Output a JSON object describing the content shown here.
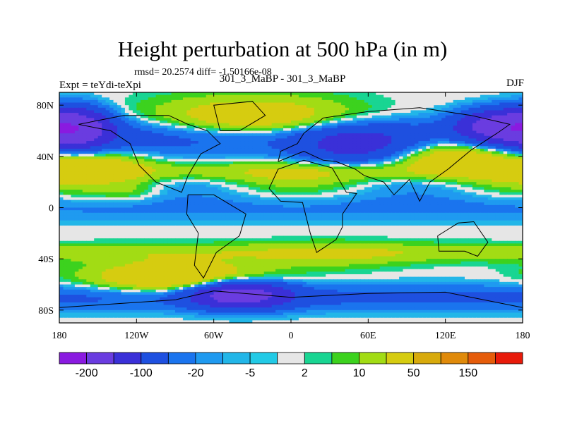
{
  "colors": {
    "levels": [
      "#8a1ae0",
      "#6a3ce0",
      "#3a30d8",
      "#1e50e0",
      "#1a74ee",
      "#1f9af0",
      "#22b6e8",
      "#22cae6",
      "#e6e6e6",
      "#19d592",
      "#3cd21e",
      "#a2dc14",
      "#d6cc10",
      "#d8aa0c",
      "#e08a0a",
      "#e55c0a",
      "#e81a0a"
    ],
    "coast": "#000000"
  },
  "chart_data": {
    "type": "heatmap",
    "title": "Height perturbation at 500 hPa (in m)",
    "rmsd_text": "rmsd= 20.2574 diff= -1.50166e-08",
    "subtitle": "301_3_MaBP - 301_3_MaBP",
    "left_label": "Expt = teYdi-teXpi",
    "right_label": "DJF",
    "xlim": [
      -180,
      180
    ],
    "ylim": [
      -90,
      90
    ],
    "x_ticks": [
      {
        "value": -180,
        "label": "180"
      },
      {
        "value": -120,
        "label": "120W"
      },
      {
        "value": -60,
        "label": "60W"
      },
      {
        "value": 0,
        "label": "0"
      },
      {
        "value": 60,
        "label": "60E"
      },
      {
        "value": 120,
        "label": "120E"
      },
      {
        "value": 180,
        "label": "180"
      }
    ],
    "y_ticks": [
      {
        "value": 80,
        "label": "80N"
      },
      {
        "value": 40,
        "label": "40N"
      },
      {
        "value": 0,
        "label": "0"
      },
      {
        "value": -40,
        "label": "40S"
      },
      {
        "value": -80,
        "label": "80S"
      }
    ],
    "colorbar_labels": [
      "-200",
      "-100",
      "-20",
      "-5",
      "2",
      "10",
      "50",
      "150"
    ],
    "features": [
      {
        "lon": -30,
        "lat": 68,
        "value": 45,
        "w": 55,
        "h": 12
      },
      {
        "lon": 125,
        "lat": 42,
        "value": 45,
        "w": 35,
        "h": 10
      },
      {
        "lon": -150,
        "lat": 35,
        "value": 25,
        "w": 30,
        "h": 10
      },
      {
        "lon": -125,
        "lat": 12,
        "value": 12,
        "w": 20,
        "h": 6
      },
      {
        "lon": -90,
        "lat": -55,
        "value": 50,
        "w": 45,
        "h": 9
      },
      {
        "lon": 30,
        "lat": -38,
        "value": 12,
        "w": 45,
        "h": 8
      },
      {
        "lon": -168,
        "lat": 62,
        "value": -150,
        "w": 18,
        "h": 10
      },
      {
        "lon": 160,
        "lat": 64,
        "value": -120,
        "w": 20,
        "h": 8
      },
      {
        "lon": -40,
        "lat": -68,
        "value": -130,
        "w": 25,
        "h": 7
      },
      {
        "lon": 50,
        "lat": 48,
        "value": -50,
        "w": 30,
        "h": 10
      }
    ]
  },
  "colorbar": {
    "labels": [
      "-200",
      "-100",
      "-20",
      "-5",
      "2",
      "10",
      "50",
      "150"
    ]
  }
}
